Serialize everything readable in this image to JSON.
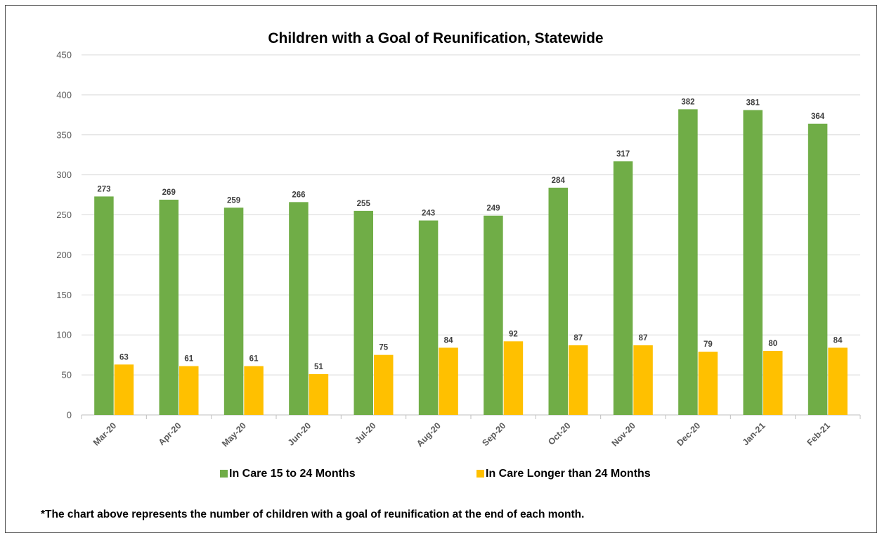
{
  "chart_data": {
    "type": "bar",
    "title": "Children with a Goal of Reunification, Statewide",
    "categories": [
      "Mar-20",
      "Apr-20",
      "May-20",
      "Jun-20",
      "Jul-20",
      "Aug-20",
      "Sep-20",
      "Oct-20",
      "Nov-20",
      "Dec-20",
      "Jan-21",
      "Feb-21"
    ],
    "series": [
      {
        "name": "In Care 15 to 24 Months",
        "color": "#70ad47",
        "values": [
          273,
          269,
          259,
          266,
          255,
          243,
          249,
          284,
          317,
          382,
          381,
          364
        ]
      },
      {
        "name": "In Care Longer than 24 Months",
        "color": "#ffc000",
        "values": [
          63,
          61,
          61,
          51,
          75,
          84,
          92,
          87,
          87,
          79,
          80,
          84
        ]
      }
    ],
    "ylim": [
      0,
      450
    ],
    "yticks": [
      0,
      50,
      100,
      150,
      200,
      250,
      300,
      350,
      400,
      450
    ],
    "grid": true,
    "data_labels": true,
    "legend_position": "bottom"
  },
  "footnote": "*The chart above represents the number of children with a goal of reunification at the end of each month."
}
